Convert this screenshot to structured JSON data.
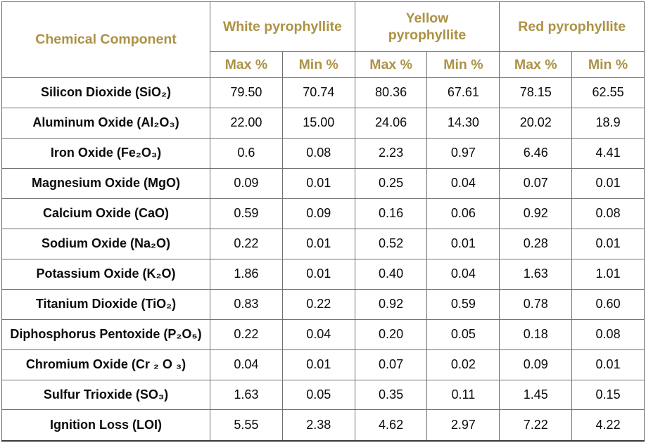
{
  "colors": {
    "header_gold": "#AC9245",
    "body_text": "#0B0B0B",
    "border_gray": "#707070",
    "background": "#FFFFFF"
  },
  "table": {
    "corner_header": "Chemical Component",
    "groups": [
      {
        "label": "White pyrophyllite"
      },
      {
        "label": "Yellow\npyrophyllite"
      },
      {
        "label": "Red pyrophyllite"
      }
    ],
    "sub_headers": [
      "Max %",
      "Min %"
    ],
    "rows": [
      {
        "label": "Silicon Dioxide (SiO₂)",
        "values": [
          "79.50",
          "70.74",
          "80.36",
          "67.61",
          "78.15",
          "62.55"
        ]
      },
      {
        "label": "Aluminum Oxide (Al₂O₃)",
        "values": [
          "22.00",
          "15.00",
          "24.06",
          "14.30",
          "20.02",
          "18.9"
        ]
      },
      {
        "label": "Iron Oxide (Fe₂O₃)",
        "values": [
          "0.6",
          "0.08",
          "2.23",
          "0.97",
          "6.46",
          "4.41"
        ]
      },
      {
        "label": "Magnesium Oxide (MgO)",
        "values": [
          "0.09",
          "0.01",
          "0.25",
          "0.04",
          "0.07",
          "0.01"
        ]
      },
      {
        "label": "Calcium Oxide (CaO)",
        "values": [
          "0.59",
          "0.09",
          "0.16",
          "0.06",
          "0.92",
          "0.08"
        ]
      },
      {
        "label": "Sodium Oxide (Na₂O)",
        "values": [
          "0.22",
          "0.01",
          "0.52",
          "0.01",
          "0.28",
          "0.01"
        ]
      },
      {
        "label": "Potassium Oxide (K₂O)",
        "values": [
          "1.86",
          "0.01",
          "0.40",
          "0.04",
          "1.63",
          "1.01"
        ]
      },
      {
        "label": "Titanium Dioxide (TiO₂)",
        "values": [
          "0.83",
          "0.22",
          "0.92",
          "0.59",
          "0.78",
          "0.60"
        ]
      },
      {
        "label": "Diphosphorus Pentoxide (P₂O₅)",
        "values": [
          "0.22",
          "0.04",
          "0.20",
          "0.05",
          "0.18",
          "0.08"
        ]
      },
      {
        "label": "Chromium Oxide (Cr ₂ O ₃)",
        "values": [
          "0.04",
          "0.01",
          "0.07",
          "0.02",
          "0.09",
          "0.01"
        ]
      },
      {
        "label": "Sulfur Trioxide (SO₃)",
        "values": [
          "1.63",
          "0.05",
          "0.35",
          "0.11",
          "1.45",
          "0.15"
        ]
      },
      {
        "label": "Ignition Loss (LOI)",
        "values": [
          "5.55",
          "2.38",
          "4.62",
          "2.97",
          "7.22",
          "4.22"
        ]
      }
    ]
  }
}
